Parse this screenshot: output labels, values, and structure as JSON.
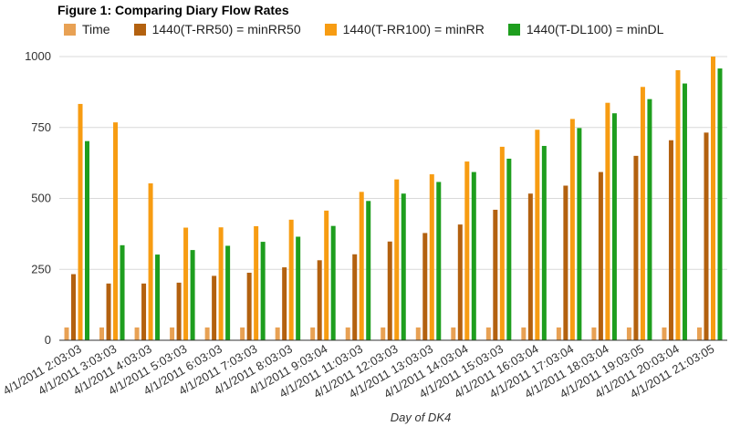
{
  "chart_data": {
    "type": "bar",
    "title": "Figure 1: Comparing Diary Flow Rates",
    "xlabel": "Day of DK4",
    "ylabel": "",
    "ylim": [
      0,
      1000
    ],
    "yticks": [
      0,
      250,
      500,
      750,
      1000
    ],
    "grid": true,
    "legend_position": "top-left",
    "categories": [
      "4/1/2011 2:03:03",
      "4/1/2011 3:03:03",
      "4/1/2011 4:03:03",
      "4/1/2011 5:03:03",
      "4/1/2011 6:03:03",
      "4/1/2011 7:03:03",
      "4/1/2011 8:03:03",
      "4/1/2011 9:03:04",
      "4/1/2011 11:03:03",
      "4/1/2011 12:03:03",
      "4/1/2011 13:03:03",
      "4/1/2011 14:03:04",
      "4/1/2011 15:03:03",
      "4/1/2011 16:03:04",
      "4/1/2011 17:03:04",
      "4/1/2011 18:03:04",
      "4/1/2011 19:03:05",
      "4/1/2011 20:03:04",
      "4/1/2011 21:03:05"
    ],
    "series": [
      {
        "name": "Time",
        "color": "#e8a154",
        "values": [
          45,
          45,
          45,
          45,
          45,
          45,
          45,
          45,
          45,
          45,
          45,
          45,
          45,
          45,
          45,
          45,
          45,
          45,
          45
        ]
      },
      {
        "name": "1440(T-RR50) = minRR50",
        "color": "#b3610f",
        "values": [
          233,
          200,
          200,
          203,
          227,
          238,
          257,
          282,
          303,
          348,
          378,
          408,
          460,
          517,
          545,
          593,
          650,
          705,
          732
        ]
      },
      {
        "name": "1440(T-RR100) = minRR",
        "color": "#f79c12",
        "values": [
          833,
          768,
          553,
          397,
          398,
          402,
          425,
          457,
          523,
          567,
          585,
          630,
          682,
          742,
          780,
          837,
          893,
          952,
          1000
        ]
      },
      {
        "name": "1440(T-DL100) = minDL",
        "color": "#1e9e1e",
        "values": [
          702,
          335,
          302,
          318,
          333,
          347,
          365,
          403,
          491,
          517,
          558,
          593,
          640,
          685,
          748,
          800,
          850,
          905,
          958
        ]
      }
    ]
  }
}
